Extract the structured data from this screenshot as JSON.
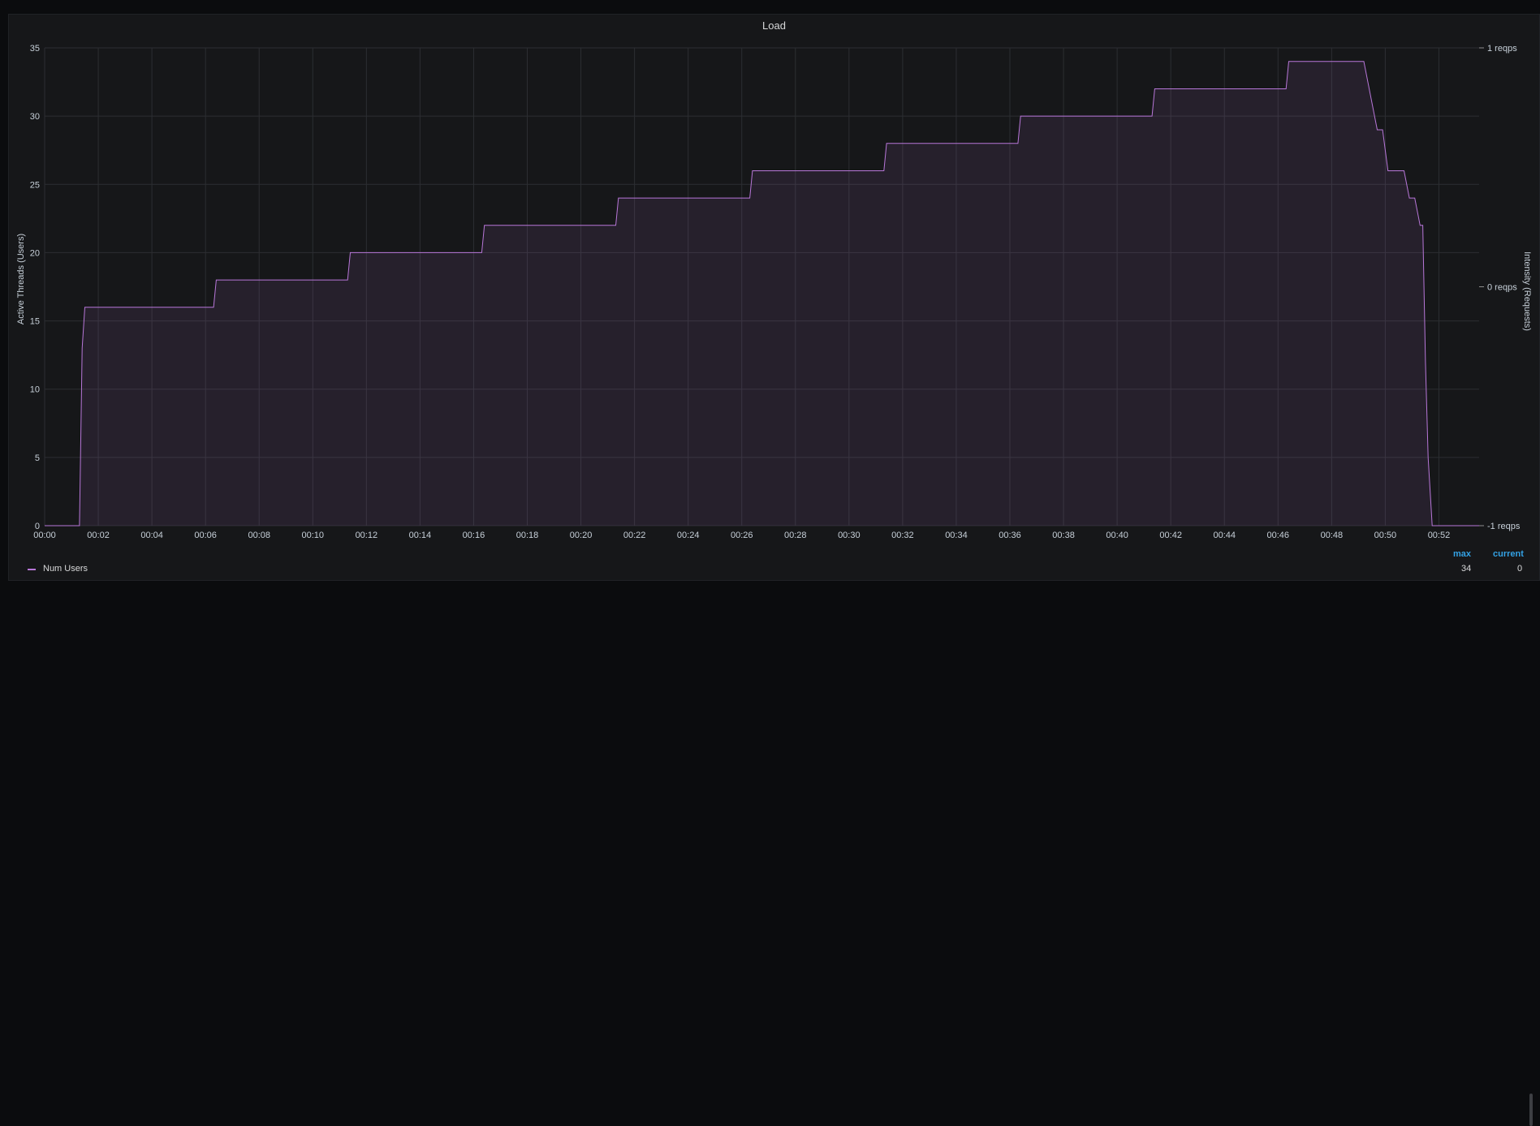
{
  "panel": {
    "title": "Load"
  },
  "chart_data": {
    "type": "area",
    "title": "Load",
    "ylabel": "Active Threads (Users)",
    "y2label": "Intensity (Requests)",
    "ylim": [
      0,
      35
    ],
    "yticks": [
      "0",
      "5",
      "10",
      "15",
      "20",
      "25",
      "30",
      "35"
    ],
    "y2ticks": [
      "1 reqps",
      "0 reqps",
      "-1 reqps"
    ],
    "xlim_minutes": [
      0,
      53.5
    ],
    "xticks": [
      "00:00",
      "00:02",
      "00:04",
      "00:06",
      "00:08",
      "00:10",
      "00:12",
      "00:14",
      "00:16",
      "00:18",
      "00:20",
      "00:22",
      "00:24",
      "00:26",
      "00:28",
      "00:30",
      "00:32",
      "00:34",
      "00:36",
      "00:38",
      "00:40",
      "00:42",
      "00:44",
      "00:46",
      "00:48",
      "00:50",
      "00:52"
    ],
    "grid": true,
    "legend_position": "bottom-left",
    "series": [
      {
        "name": "Num Users",
        "color": "#b877d9",
        "x": [
          0,
          1.3,
          1.4,
          1.5,
          6.3,
          6.4,
          11.3,
          11.4,
          16.3,
          16.4,
          21.3,
          21.4,
          26.3,
          26.4,
          31.3,
          31.4,
          36.3,
          36.4,
          41.3,
          41.4,
          46.3,
          46.4,
          49.2,
          49.5,
          49.7,
          49.9,
          50.1,
          50.2,
          50.7,
          50.9,
          51.1,
          51.3,
          51.4,
          51.5,
          51.6,
          51.75,
          51.8,
          52.2,
          53.5
        ],
        "y": [
          0,
          0,
          13,
          16,
          16,
          18,
          18,
          20,
          20,
          22,
          22,
          24,
          24,
          26,
          26,
          28,
          28,
          30,
          30,
          32,
          32,
          34,
          34,
          31,
          29,
          29,
          26,
          26,
          26,
          24,
          24,
          22,
          22,
          12,
          5,
          0,
          0,
          0,
          0
        ]
      }
    ]
  },
  "legend": {
    "columns": {
      "max": "max",
      "current": "current"
    },
    "items": [
      {
        "name": "Num Users",
        "max": "34",
        "current": "0"
      }
    ]
  }
}
